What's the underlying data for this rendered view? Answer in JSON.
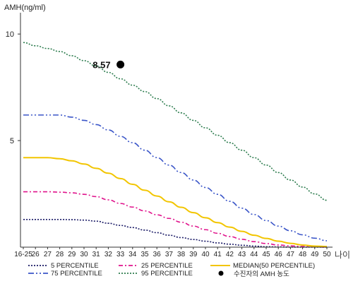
{
  "colors": {
    "p5": "#1a1a66",
    "p25": "#e0138c",
    "p50": "#f2c500",
    "p75": "#3a55c8",
    "p95": "#2e7d4f",
    "marker": "#000000",
    "axis": "#333333"
  },
  "chart_data": {
    "type": "line",
    "ylabel": "AMH(ng/ml)",
    "xlabel": "나이",
    "yticks": [
      5,
      10
    ],
    "ylim": [
      0,
      11
    ],
    "categories": [
      "16-25",
      "26",
      "27",
      "28",
      "29",
      "30",
      "31",
      "32",
      "33",
      "34",
      "35",
      "36",
      "37",
      "38",
      "39",
      "40",
      "41",
      "42",
      "43",
      "44",
      "45",
      "46",
      "47",
      "48",
      "49",
      "50"
    ],
    "series": [
      {
        "name": "5 PERCENTILE",
        "color_key": "p5",
        "dash": "2,2",
        "values": [
          1.3,
          1.3,
          1.3,
          1.3,
          1.29,
          1.27,
          1.22,
          1.12,
          1.02,
          0.92,
          0.8,
          0.68,
          0.56,
          0.45,
          0.36,
          0.28,
          0.2,
          0.14,
          0.09,
          0.05,
          0.02,
          0.01,
          0.0,
          0.0,
          0.0,
          0.0
        ]
      },
      {
        "name": "25 PERCENTILE",
        "color_key": "p25",
        "dash": "6,3,2,3",
        "values": [
          2.6,
          2.6,
          2.6,
          2.58,
          2.55,
          2.48,
          2.37,
          2.22,
          2.05,
          1.88,
          1.7,
          1.52,
          1.35,
          1.17,
          0.99,
          0.82,
          0.65,
          0.5,
          0.37,
          0.26,
          0.17,
          0.1,
          0.06,
          0.03,
          0.01,
          0.0
        ]
      },
      {
        "name": "MEDIAN(50 PERCENTILE)",
        "color_key": "p50",
        "dash": "",
        "values": [
          4.2,
          4.2,
          4.2,
          4.15,
          4.05,
          3.9,
          3.7,
          3.47,
          3.22,
          2.95,
          2.67,
          2.4,
          2.13,
          1.87,
          1.62,
          1.38,
          1.15,
          0.94,
          0.74,
          0.56,
          0.41,
          0.28,
          0.18,
          0.1,
          0.05,
          0.03
        ]
      },
      {
        "name": "75 PERCENTILE",
        "color_key": "p75",
        "dash": "8,3,2,3,2,3",
        "values": [
          6.2,
          6.2,
          6.2,
          6.2,
          6.1,
          5.95,
          5.75,
          5.5,
          5.2,
          4.9,
          4.55,
          4.2,
          3.85,
          3.5,
          3.15,
          2.8,
          2.48,
          2.15,
          1.83,
          1.53,
          1.25,
          0.99,
          0.77,
          0.58,
          0.42,
          0.3
        ]
      },
      {
        "name": "95 PERCENTILE",
        "color_key": "p95",
        "dash": "2,2",
        "values": [
          9.6,
          9.45,
          9.32,
          9.18,
          8.98,
          8.75,
          8.5,
          8.2,
          7.9,
          7.6,
          7.3,
          6.97,
          6.63,
          6.3,
          5.95,
          5.6,
          5.25,
          4.9,
          4.55,
          4.2,
          3.85,
          3.5,
          3.15,
          2.82,
          2.5,
          2.2
        ]
      }
    ],
    "marker": {
      "x": "33",
      "y": 8.57,
      "label": "8.57",
      "legend": "수진자의 AMH 농도"
    }
  }
}
